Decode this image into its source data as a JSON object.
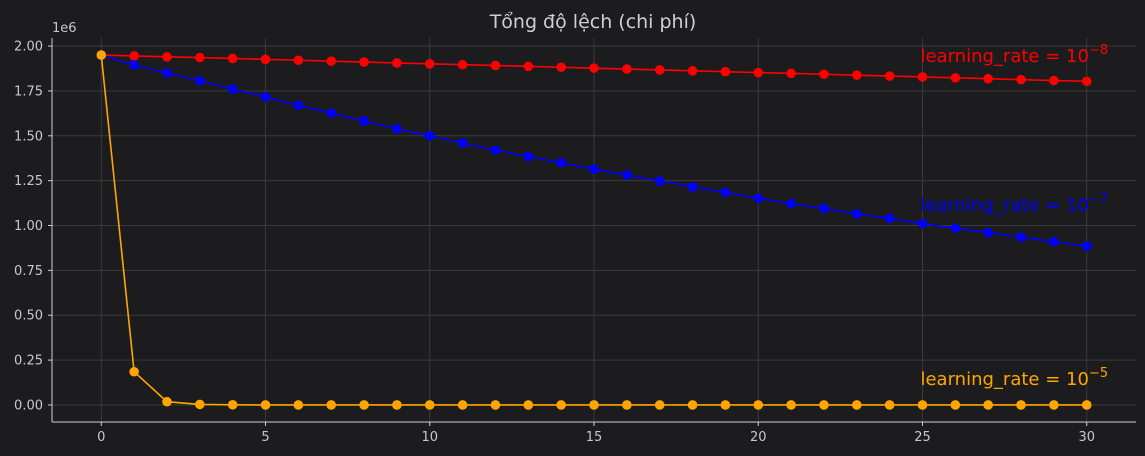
{
  "chart_data": {
    "type": "line",
    "title": "Tổng độ lệch (chi phí)",
    "xlabel": "",
    "ylabel": "",
    "y_offset_label": "1e6",
    "xlim": [
      -1.5,
      31.5
    ],
    "ylim": [
      -0.095,
      2.045
    ],
    "x_ticks": [
      0,
      5,
      10,
      15,
      20,
      25,
      30
    ],
    "x_tick_labels": [
      "0",
      "5",
      "10",
      "15",
      "20",
      "25",
      "30"
    ],
    "y_ticks": [
      0.0,
      0.25,
      0.5,
      0.75,
      1.0,
      1.25,
      1.5,
      1.75,
      2.0
    ],
    "y_tick_labels": [
      "0.00",
      "0.25",
      "0.50",
      "0.75",
      "1.00",
      "1.25",
      "1.50",
      "1.75",
      "2.00"
    ],
    "grid": true,
    "x": [
      0,
      1,
      2,
      3,
      4,
      5,
      6,
      7,
      8,
      9,
      10,
      11,
      12,
      13,
      14,
      15,
      16,
      17,
      18,
      19,
      20,
      21,
      22,
      23,
      24,
      25,
      26,
      27,
      28,
      29,
      30
    ],
    "series": [
      {
        "name": "learning_rate = 10^-8",
        "color": "#ff0000",
        "values": [
          1.95,
          1.945,
          1.94,
          1.936,
          1.931,
          1.926,
          1.921,
          1.916,
          1.911,
          1.906,
          1.901,
          1.896,
          1.892,
          1.887,
          1.882,
          1.877,
          1.872,
          1.867,
          1.862,
          1.857,
          1.852,
          1.848,
          1.843,
          1.838,
          1.833,
          1.828,
          1.823,
          1.818,
          1.813,
          1.808,
          1.804
        ]
      },
      {
        "name": "learning_rate = 10^-7",
        "color": "#0000ff",
        "values": [
          1.95,
          1.895,
          1.85,
          1.806,
          1.76,
          1.716,
          1.67,
          1.626,
          1.582,
          1.539,
          1.5,
          1.46,
          1.42,
          1.385,
          1.35,
          1.314,
          1.282,
          1.248,
          1.215,
          1.185,
          1.152,
          1.122,
          1.095,
          1.065,
          1.04,
          1.01,
          0.985,
          0.96,
          0.935,
          0.91,
          0.885
        ]
      },
      {
        "name": "learning_rate = 10^-5",
        "color": "#ffa500",
        "values": [
          1.95,
          0.185,
          0.018,
          0.003,
          0.001,
          0.0,
          0.0,
          0.0,
          0.0,
          0.0,
          0.0,
          0.0,
          0.0,
          0.0,
          0.0,
          0.0,
          0.0,
          0.0,
          0.0,
          0.0,
          0.0,
          0.0,
          0.0,
          0.0,
          0.0,
          0.0,
          0.0,
          0.0,
          0.0,
          0.0,
          0.0
        ]
      }
    ],
    "annotations": [
      {
        "prefix": "learning_rate = 10",
        "exponent": "−8",
        "color": "#ff0000",
        "x": 25,
        "y": 1.91
      },
      {
        "prefix": "learning_rate = 10",
        "exponent": "−7",
        "color": "#0000ff",
        "x": 25,
        "y": 1.08
      },
      {
        "prefix": "learning_rate = 10",
        "exponent": "−5",
        "color": "#ffa500",
        "x": 25,
        "y": 0.11
      }
    ]
  }
}
